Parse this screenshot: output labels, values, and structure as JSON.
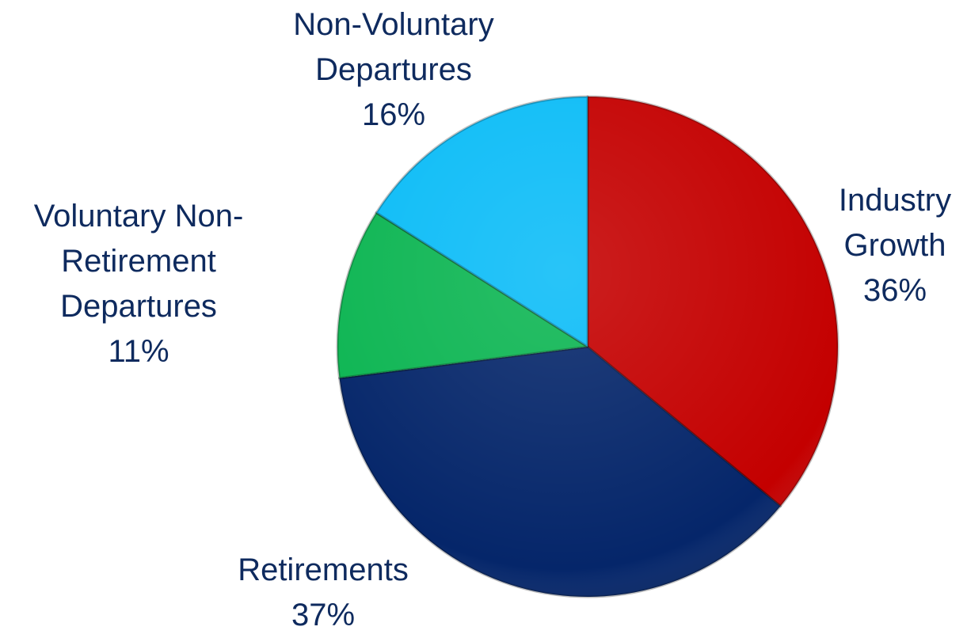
{
  "chart_data": {
    "type": "pie",
    "categories": [
      "Industry Growth",
      "Retirements",
      "Voluntary Non-Retirement Departures",
      "Non-Voluntary Departures"
    ],
    "values": [
      36,
      37,
      11,
      16
    ],
    "value_labels": [
      "36%",
      "37%",
      "11%",
      "16%"
    ],
    "colors": [
      "#c40000",
      "#05266a",
      "#0cb552",
      "#0bbcf7"
    ]
  }
}
